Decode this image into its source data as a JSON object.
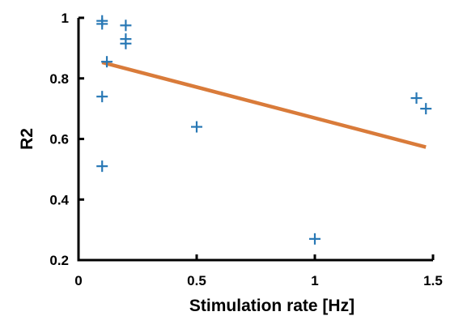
{
  "chart_data": {
    "type": "scatter",
    "xlabel": "Stimulation rate [Hz]",
    "ylabel": "R2",
    "xlim": [
      0,
      1.5
    ],
    "ylim": [
      0.2,
      1.0
    ],
    "x_ticks": [
      "0",
      "0.5",
      "1",
      "1.5"
    ],
    "y_ticks": [
      "0.2",
      "0.4",
      "0.6",
      "0.8",
      "1"
    ],
    "grid": false,
    "series": [
      {
        "kind": "scatter",
        "marker": "+",
        "color": "#2878b5",
        "points": [
          {
            "x": 0.1,
            "y": 0.99
          },
          {
            "x": 0.1,
            "y": 0.98
          },
          {
            "x": 0.2,
            "y": 0.975
          },
          {
            "x": 0.2,
            "y": 0.93
          },
          {
            "x": 0.2,
            "y": 0.915
          },
          {
            "x": 0.12,
            "y": 0.855
          },
          {
            "x": 0.1,
            "y": 0.74
          },
          {
            "x": 0.1,
            "y": 0.51
          },
          {
            "x": 0.5,
            "y": 0.64
          },
          {
            "x": 1.0,
            "y": 0.27
          },
          {
            "x": 1.43,
            "y": 0.735
          },
          {
            "x": 1.47,
            "y": 0.7
          }
        ]
      },
      {
        "kind": "line",
        "color": "#d97b3a",
        "points": [
          {
            "x": 0.1,
            "y": 0.853
          },
          {
            "x": 1.47,
            "y": 0.573
          }
        ]
      }
    ]
  }
}
